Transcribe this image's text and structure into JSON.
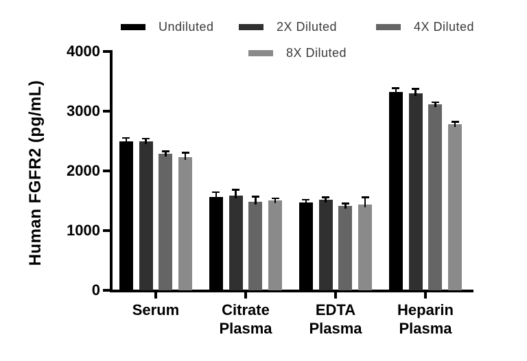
{
  "figure": {
    "background": "#ffffff",
    "text_color": "#000000"
  },
  "chart_data": {
    "type": "bar",
    "title": "",
    "xlabel": "",
    "ylabel": "Human FGFR2 (pg/mL)",
    "ylim": [
      0,
      4000
    ],
    "yticks": [
      0,
      1000,
      2000,
      3000,
      4000
    ],
    "grid": false,
    "legend_position": "top",
    "error_bars": true,
    "categories": [
      "Serum",
      "Citrate Plasma",
      "EDTA Plasma",
      "Heparin Plasma"
    ],
    "series": [
      {
        "name": "Undiluted",
        "color": "#000000",
        "values": [
          2500,
          1560,
          1470,
          3320
        ],
        "errors": [
          50,
          85,
          50,
          65
        ]
      },
      {
        "name": "2X Diluted",
        "color": "#303030",
        "values": [
          2490,
          1590,
          1520,
          3300
        ],
        "errors": [
          50,
          95,
          40,
          75
        ]
      },
      {
        "name": "4X Diluted",
        "color": "#656565",
        "values": [
          2290,
          1480,
          1410,
          3110
        ],
        "errors": [
          40,
          90,
          45,
          40
        ]
      },
      {
        "name": "8X Diluted",
        "color": "#8a8a8a",
        "values": [
          2230,
          1510,
          1440,
          2780
        ],
        "errors": [
          75,
          30,
          115,
          40
        ]
      }
    ]
  }
}
